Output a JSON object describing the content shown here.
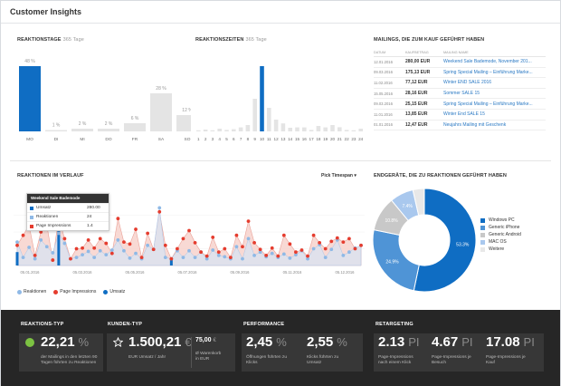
{
  "header": {
    "title": "Customer Insights"
  },
  "colors": {
    "blue": "#0f6dc3",
    "gray_bar": "#e4e4e4",
    "salmon": "#e53c2e",
    "light_blue": "#8fb9e6",
    "footer_bg": "#262626",
    "card_bg": "#373737"
  },
  "reaktionstage": {
    "title": "REAKTIONSTAGE",
    "subtitle": "365 Tage",
    "chart_data": {
      "type": "bar",
      "categories": [
        "MO",
        "DI",
        "MI",
        "DO",
        "FR",
        "SA",
        "SO"
      ],
      "values": [
        48,
        1,
        2,
        2,
        6,
        28,
        12
      ],
      "value_labels": [
        "48 %",
        "1 %",
        "2 %",
        "2 %",
        "6 %",
        "28 %",
        "12 %"
      ],
      "highlight": "MO"
    }
  },
  "reaktionszeiten": {
    "title": "REAKTIONSZEITEN",
    "subtitle": "365 Tage",
    "chart_data": {
      "type": "bar",
      "categories": [
        "1",
        "2",
        "3",
        "4",
        "5",
        "6",
        "7",
        "8",
        "9",
        "10",
        "11",
        "12",
        "13",
        "14",
        "15",
        "16",
        "17",
        "18",
        "19",
        "20",
        "21",
        "22",
        "23",
        "24"
      ],
      "values": [
        0.6,
        1,
        0.6,
        1.5,
        0.8,
        1.2,
        2.2,
        3.5,
        18,
        36,
        13,
        6.5,
        4.4,
        2,
        2.2,
        2.2,
        0.8,
        3,
        2.2,
        3.5,
        2.3,
        0.8,
        0.6,
        1.5
      ],
      "highlight": "10"
    }
  },
  "mailings": {
    "title": "MAILINGS, DIE ZUM KAUF GEFÜHRT HABEN",
    "columns": [
      "DATUM",
      "KAUFBETRAG",
      "MAILING NAME"
    ],
    "rows": [
      {
        "date": "12.01.2016",
        "amount": "280,00 EUR",
        "name": "Weekend Sale Bademode, November 201..."
      },
      {
        "date": "09.03.2016",
        "amount": "175,13 EUR",
        "name": "Spring Special Mailing – Einführung Marke..."
      },
      {
        "date": "11.02.2016",
        "amount": "77,12 EUR",
        "name": "Winter END SALE 2016"
      },
      {
        "date": "15.05.2016",
        "amount": "28,16 EUR",
        "name": "Sommer SALE 15"
      },
      {
        "date": "09.03.2016",
        "amount": "25,15 EUR",
        "name": "Spring Special Mailing – Einführung Marke..."
      },
      {
        "date": "11.01.2016",
        "amount": "13,85 EUR",
        "name": "Winter End SALE 15"
      },
      {
        "date": "01.01.2016",
        "amount": "12,47 EUR",
        "name": "Neujahrs Mailing mit Geschenk"
      }
    ]
  },
  "verlauf": {
    "title": "REAKTIONEN IM VERLAUF",
    "picker": "Pick Timespan",
    "tooltip": {
      "title": "Weekend Sale Bademode",
      "rows": [
        {
          "label": "Umsatz",
          "value": "280.00",
          "color": "#0f6dc3"
        },
        {
          "label": "Reaktionen",
          "value": "24",
          "color": "#8fb9e6"
        },
        {
          "label": "Page Impressions",
          "value": "1.4",
          "color": "#e53c2e"
        }
      ]
    },
    "legend": [
      {
        "label": "Reaktionen",
        "color": "#8fb9e6"
      },
      {
        "label": "Page Impressions",
        "color": "#e53c2e"
      },
      {
        "label": "Umsatz",
        "color": "#0f6dc3"
      }
    ],
    "chart_data": {
      "type": "line",
      "x_tick_labels": [
        "05.01.2016",
        "05.03.2016",
        "05.05.2016",
        "05.07.2016",
        "05.09.2016",
        "05.11.2016",
        "05.12.2016"
      ],
      "series": [
        {
          "name": "Page Impressions",
          "values": [
            3,
            4.5,
            6,
            1.5,
            5,
            6,
            0.8,
            7.2,
            4,
            1,
            2.5,
            2.6,
            3.8,
            2.6,
            4,
            3.3,
            1.8,
            7,
            3.5,
            3.2,
            5.4,
            1.2,
            4.8,
            2.4,
            8,
            3,
            1,
            2.5,
            4,
            5.2,
            3.4,
            2,
            1.4,
            4.2,
            2,
            2.5,
            1.2,
            4.5,
            2.8,
            6.6,
            3.4,
            2.4,
            1.5,
            2.6,
            1.4,
            4.5,
            3.2,
            2,
            2.3,
            1.4,
            4.5,
            3.4,
            2.5,
            3.6,
            4.1,
            3.5,
            4,
            2.5,
            3
          ]
        },
        {
          "name": "Reaktionen",
          "values": [
            3.5,
            1.2,
            2.7,
            1,
            3.8,
            2.8,
            1.9,
            4.8,
            3.3,
            1,
            1.2,
            1.6,
            2.1,
            1.2,
            2.2,
            1.6,
            2.3,
            3.8,
            2.2,
            1.1,
            1.8,
            1,
            3,
            2.4,
            8.6,
            1.2,
            1,
            2.2,
            1.2,
            2.2,
            1.2,
            2,
            1,
            2.3,
            1.5,
            1.3,
            1,
            2.8,
            1,
            4,
            1.5,
            2,
            1.3,
            1.8,
            1.2,
            1.7,
            1.1,
            1.6,
            2.2,
            1,
            2.5,
            3.1,
            1.2,
            2.4,
            3.8,
            1.5,
            2,
            2.6,
            3
          ]
        },
        {
          "name": "Umsatz",
          "values": [
            2,
            0,
            0,
            0,
            0,
            0,
            0,
            7,
            0,
            0,
            0,
            0,
            0,
            0,
            0,
            0,
            0,
            0,
            0,
            0,
            0,
            0,
            0,
            0,
            0,
            0,
            1,
            0,
            0,
            0,
            0,
            0,
            0,
            0,
            0,
            0,
            0,
            0,
            0,
            0,
            0,
            0,
            0,
            0,
            0,
            0,
            0,
            0,
            0,
            0,
            0,
            0,
            0,
            0,
            0,
            0,
            0,
            0,
            0
          ]
        }
      ],
      "ylim": [
        0,
        10
      ]
    }
  },
  "endgeraete": {
    "title": "ENDGERÄTE, DIE ZU REAKTIONEN GEFÜHRT HABEN",
    "chart_data": {
      "type": "pie",
      "labels": [
        "Windows PC",
        "Generic iPhone",
        "Generic Android",
        "MAC OS",
        "Weitere"
      ],
      "values": [
        53.3,
        24.9,
        10.8,
        7.4,
        3.6
      ],
      "colors": [
        "#0f6dc3",
        "#4f94d6",
        "#c8c8c8",
        "#a9c8ee",
        "#e8e8e8"
      ],
      "slice_labels": [
        "53.3%",
        "24.9%",
        "10.8%",
        "7.4%",
        ""
      ]
    }
  },
  "footer": {
    "reaktionstyp": {
      "title": "REAKTIONS-TYP",
      "value": "22,21",
      "unit": "%",
      "caption_line1": "der Mailings in den letzten 90",
      "caption_line2": "Tagen führten zu Reaktionen"
    },
    "kundentyp": {
      "title": "KUNDEN-TYP",
      "value": "1.500,21",
      "unit": "€",
      "caption": "EUR Umsatz / Jahr",
      "side_value": "75,00",
      "side_unit": "€",
      "side_caption_line1": "Ø Warenkorb",
      "side_caption_line2": "in EUR"
    },
    "performance": {
      "title": "PERFORMANCE",
      "v1": "2,45",
      "u1": "%",
      "c1_line1": "Öffnungen führten zu",
      "c1_line2": "Klicks",
      "v2": "2,55",
      "u2": "%",
      "c2_line1": "Klicks führten zu",
      "c2_line2": "Umsatz"
    },
    "retargeting": {
      "title": "RETARGETING",
      "v1": "2.13",
      "u1": "PI",
      "c1_line1": "Page-Impressions",
      "c1_line2": "nach einem Klick",
      "v2": "4.67",
      "u2": "PI",
      "c2_line1": "Page-Impressions je",
      "c2_line2": "Besuch",
      "v3": "17.08",
      "u3": "PI",
      "c3_line1": "Page-Impressions je",
      "c3_line2": "Kauf"
    }
  }
}
